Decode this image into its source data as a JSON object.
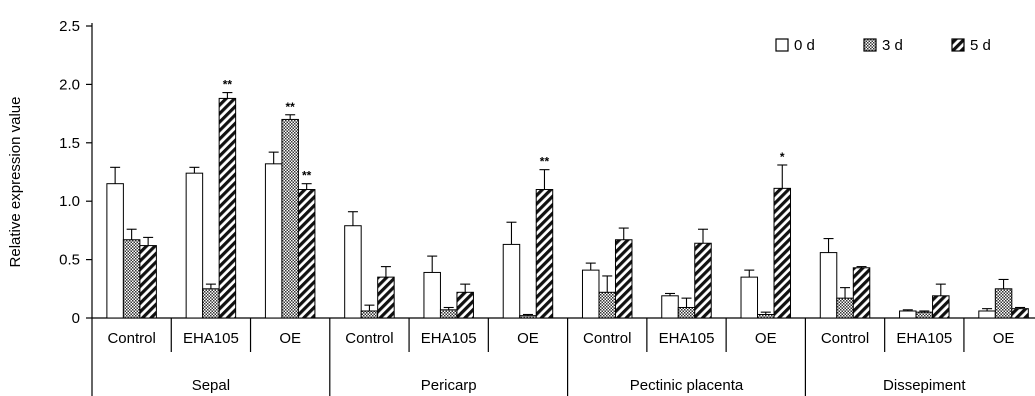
{
  "chart_data": {
    "type": "bar",
    "ylabel": "Relative expression value",
    "xlabel": "",
    "ylim": [
      0,
      2.5
    ],
    "yticks": [
      0,
      0.5,
      1.0,
      1.5,
      2.0,
      2.5
    ],
    "ytick_labels": [
      "0",
      "0.5",
      "1.0",
      "1.5",
      "2.0",
      "2.5"
    ],
    "legend_position": "top-right",
    "groups": [
      {
        "name": "Sepal",
        "categories": [
          "Control",
          "EHA105",
          "OE"
        ]
      },
      {
        "name": "Pericarp",
        "categories": [
          "Control",
          "EHA105",
          "OE"
        ]
      },
      {
        "name": "Pectinic placenta",
        "categories": [
          "Control",
          "EHA105",
          "OE"
        ]
      },
      {
        "name": "Dissepiment",
        "categories": [
          "Control",
          "EHA105",
          "OE"
        ]
      }
    ],
    "series": [
      {
        "name": "0 d",
        "pattern": "open",
        "values": [
          1.15,
          1.24,
          1.32,
          0.79,
          0.39,
          0.63,
          0.41,
          0.19,
          0.35,
          0.56,
          0.06,
          0.06
        ],
        "errors": [
          0.14,
          0.05,
          0.1,
          0.12,
          0.14,
          0.19,
          0.06,
          0.02,
          0.06,
          0.12,
          0.01,
          0.02
        ]
      },
      {
        "name": "3 d",
        "pattern": "crosshatch",
        "values": [
          0.67,
          0.25,
          1.7,
          0.06,
          0.07,
          0.02,
          0.22,
          0.09,
          0.03,
          0.17,
          0.05,
          0.25
        ],
        "errors": [
          0.09,
          0.04,
          0.04,
          0.05,
          0.02,
          0.01,
          0.14,
          0.08,
          0.02,
          0.09,
          0.01,
          0.08
        ]
      },
      {
        "name": "5 d",
        "pattern": "diagonal",
        "values": [
          0.62,
          1.88,
          1.1,
          0.35,
          0.22,
          1.1,
          0.67,
          0.64,
          1.11,
          0.43,
          0.19,
          0.08
        ],
        "errors": [
          0.07,
          0.05,
          0.05,
          0.09,
          0.07,
          0.17,
          0.1,
          0.12,
          0.2,
          0.01,
          0.1,
          0.01
        ]
      }
    ],
    "annotations": [
      {
        "group_index": 0,
        "category_index": 1,
        "series_index": 2,
        "text": "**"
      },
      {
        "group_index": 0,
        "category_index": 2,
        "series_index": 1,
        "text": "**"
      },
      {
        "group_index": 0,
        "category_index": 2,
        "series_index": 2,
        "text": "**"
      },
      {
        "group_index": 1,
        "category_index": 2,
        "series_index": 2,
        "text": "**"
      },
      {
        "group_index": 2,
        "category_index": 2,
        "series_index": 2,
        "text": "*"
      }
    ]
  }
}
